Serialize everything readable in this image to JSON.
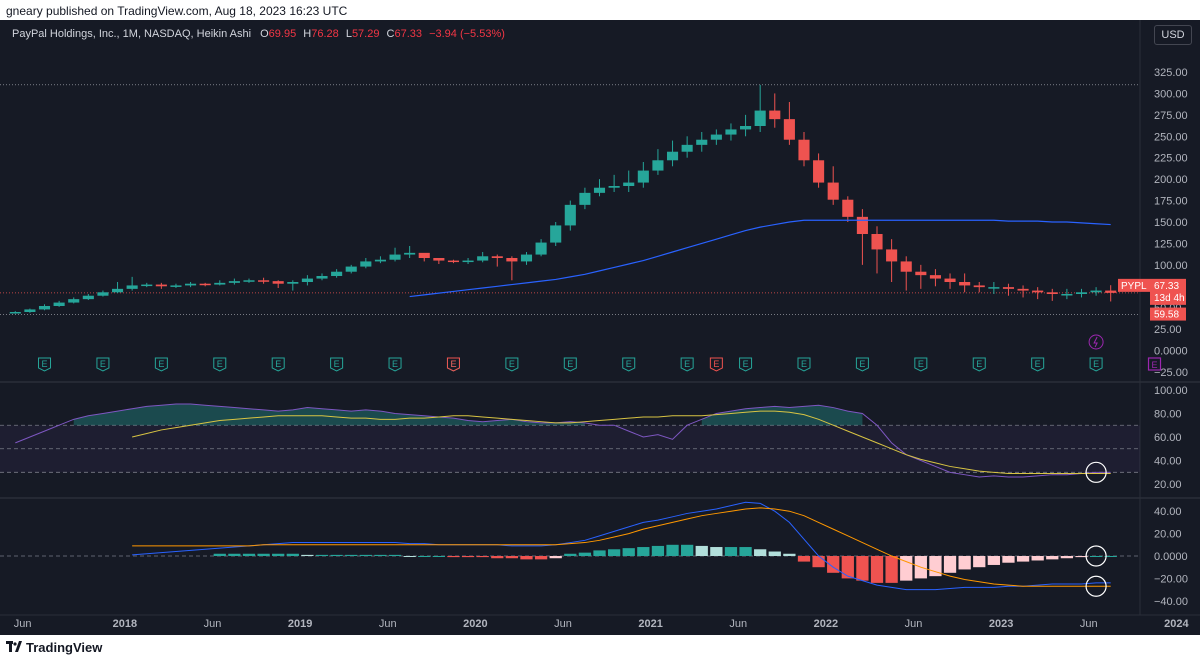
{
  "header": {
    "published_line": "gneary published on TradingView.com, Aug 18, 2023 16:23 UTC"
  },
  "legend": {
    "title": "PayPal Holdings, Inc., 1M, NASDAQ, Heikin Ashi",
    "open_label": "O",
    "open": "69.95",
    "high_label": "H",
    "high": "76.28",
    "low_label": "L",
    "low": "57.29",
    "close_label": "C",
    "close": "67.33",
    "change": "−3.94 (−5.53%)"
  },
  "currency_button": "USD",
  "price_axis": {
    "ticks": [
      "325.00",
      "300.00",
      "275.00",
      "250.00",
      "225.00",
      "200.00",
      "175.00",
      "150.00",
      "125.00",
      "100.00",
      "75.00",
      "50.00",
      "25.00",
      "0.0000",
      "−25.00"
    ]
  },
  "price_badges": {
    "symbol": "PYPL",
    "last": "67.33",
    "countdown": "13d 4h",
    "low_marker": "59.58"
  },
  "rsi_axis": {
    "ticks": [
      "100.00",
      "80.00",
      "60.00",
      "40.00",
      "20.00"
    ]
  },
  "macd_axis": {
    "ticks": [
      "40.00",
      "20.00",
      "0.0000",
      "−20.00",
      "−40.00"
    ]
  },
  "time_axis": {
    "labels": [
      "Jun",
      "2018",
      "Jun",
      "2019",
      "Jun",
      "2020",
      "Jun",
      "2021",
      "Jun",
      "2022",
      "Jun",
      "2023",
      "Jun",
      "2024",
      "Jun"
    ]
  },
  "events": {
    "earnings_letter": "E",
    "dividend_icon": "lightning-icon"
  },
  "footer": {
    "brand": "TradingView"
  },
  "colors": {
    "up": "#26a69a",
    "down": "#ef5350",
    "background": "#161a25",
    "ma_line": "#2962ff",
    "rsi_line": "#7e57c2",
    "rsi_ma": "#d8c443",
    "macd_signal": "#ff9800"
  },
  "chart_data": [
    {
      "type": "candlestick",
      "style": "Heikin Ashi",
      "timeframe": "1M",
      "x": [
        "2017-05",
        "2017-06",
        "2017-07",
        "2017-08",
        "2017-09",
        "2017-10",
        "2017-11",
        "2017-12",
        "2018-01",
        "2018-02",
        "2018-03",
        "2018-04",
        "2018-05",
        "2018-06",
        "2018-07",
        "2018-08",
        "2018-09",
        "2018-10",
        "2018-11",
        "2018-12",
        "2019-01",
        "2019-02",
        "2019-03",
        "2019-04",
        "2019-05",
        "2019-06",
        "2019-07",
        "2019-08",
        "2019-09",
        "2019-10",
        "2019-11",
        "2019-12",
        "2020-01",
        "2020-02",
        "2020-03",
        "2020-04",
        "2020-05",
        "2020-06",
        "2020-07",
        "2020-08",
        "2020-09",
        "2020-10",
        "2020-11",
        "2020-12",
        "2021-01",
        "2021-02",
        "2021-03",
        "2021-04",
        "2021-05",
        "2021-06",
        "2021-07",
        "2021-08",
        "2021-09",
        "2021-10",
        "2021-11",
        "2021-12",
        "2022-01",
        "2022-02",
        "2022-03",
        "2022-04",
        "2022-05",
        "2022-06",
        "2022-07",
        "2022-08",
        "2022-09",
        "2022-10",
        "2022-11",
        "2022-12",
        "2023-01",
        "2023-02",
        "2023-03",
        "2023-04",
        "2023-05",
        "2023-06",
        "2023-07",
        "2023-08"
      ],
      "open": [
        44,
        45,
        48,
        52,
        56,
        60,
        64,
        68,
        72,
        76,
        77,
        75,
        76,
        78,
        77,
        79,
        81,
        82,
        81,
        78,
        80,
        84,
        87,
        92,
        98,
        104,
        106,
        112,
        114,
        108,
        105,
        104,
        105,
        110,
        108,
        104,
        112,
        126,
        146,
        170,
        184,
        190,
        192,
        196,
        210,
        222,
        232,
        240,
        246,
        252,
        258,
        262,
        280,
        270,
        246,
        222,
        196,
        176,
        156,
        136,
        118,
        104,
        92,
        88,
        84,
        80,
        76,
        74,
        74,
        72,
        70,
        68,
        66,
        66,
        68,
        70
      ],
      "close": [
        45,
        48,
        52,
        56,
        60,
        64,
        68,
        72,
        76,
        77,
        75,
        76,
        78,
        77,
        79,
        81,
        82,
        81,
        78,
        80,
        84,
        87,
        92,
        98,
        104,
        106,
        112,
        114,
        108,
        105,
        104,
        105,
        110,
        108,
        104,
        112,
        126,
        146,
        170,
        184,
        190,
        192,
        196,
        210,
        222,
        232,
        240,
        246,
        252,
        258,
        262,
        280,
        270,
        246,
        222,
        196,
        176,
        156,
        136,
        118,
        104,
        92,
        88,
        84,
        80,
        76,
        74,
        74,
        72,
        70,
        68,
        66,
        66,
        68,
        70,
        67.33
      ],
      "high": [
        46,
        49,
        54,
        58,
        62,
        66,
        70,
        80,
        86,
        79,
        79,
        78,
        80,
        79,
        82,
        84,
        84,
        85,
        82,
        82,
        88,
        90,
        95,
        100,
        108,
        110,
        120,
        122,
        112,
        108,
        106,
        108,
        115,
        112,
        110,
        115,
        130,
        150,
        175,
        190,
        200,
        205,
        210,
        220,
        235,
        245,
        250,
        255,
        258,
        265,
        275,
        310,
        300,
        290,
        255,
        230,
        215,
        180,
        165,
        145,
        130,
        110,
        100,
        95,
        90,
        90,
        80,
        80,
        78,
        76,
        74,
        72,
        72,
        72,
        74,
        76.28
      ],
      "low": [
        43,
        44,
        47,
        51,
        55,
        59,
        63,
        67,
        70,
        74,
        72,
        73,
        74,
        75,
        76,
        77,
        79,
        78,
        73,
        70,
        76,
        82,
        85,
        90,
        96,
        102,
        104,
        108,
        104,
        101,
        102,
        101,
        103,
        98,
        82,
        100,
        110,
        122,
        140,
        165,
        180,
        185,
        185,
        190,
        205,
        215,
        225,
        232,
        240,
        245,
        250,
        255,
        260,
        240,
        215,
        190,
        170,
        150,
        100,
        90,
        80,
        70,
        72,
        75,
        72,
        68,
        68,
        66,
        64,
        62,
        60,
        58,
        60,
        62,
        64,
        57.29
      ],
      "sma": [
        null,
        null,
        null,
        null,
        null,
        null,
        null,
        null,
        null,
        null,
        null,
        null,
        null,
        null,
        null,
        null,
        null,
        null,
        null,
        null,
        null,
        null,
        null,
        null,
        null,
        null,
        null,
        null,
        null,
        null,
        null,
        null,
        null,
        null,
        null,
        null,
        null,
        null,
        null,
        null,
        null,
        null,
        null,
        null,
        null,
        null,
        null,
        null,
        null,
        null,
        null,
        null,
        null,
        null,
        null,
        null,
        null,
        null,
        null,
        null,
        null,
        null,
        null,
        null,
        null,
        null,
        null,
        null,
        null,
        null,
        null,
        null,
        null,
        null,
        null,
        null
      ],
      "sma_line": {
        "x_start": "2019-08",
        "x_end": "2023-08",
        "values": [
          63,
          65,
          67,
          69,
          71,
          73,
          75,
          77,
          79,
          81,
          83,
          86,
          89,
          93,
          97,
          101,
          105,
          110,
          115,
          120,
          125,
          130,
          135,
          140,
          144,
          147,
          150,
          152,
          152,
          152,
          152,
          152,
          152,
          152,
          152,
          152,
          152,
          152,
          152,
          152,
          152,
          151,
          151,
          151,
          150,
          150,
          149,
          148,
          147
        ]
      },
      "ylim": [
        -25,
        325
      ],
      "axis_format": "price"
    },
    {
      "type": "line",
      "title": "",
      "series": [
        {
          "values": [
            55,
            60,
            65,
            70,
            75,
            78,
            80,
            82,
            84,
            86,
            87,
            88,
            88,
            87,
            86,
            85,
            84,
            83,
            82,
            83,
            85,
            84,
            83,
            82,
            83,
            82,
            80,
            79,
            78,
            77,
            76,
            74,
            73,
            74,
            75,
            73,
            72,
            72,
            73,
            72,
            70,
            70,
            65,
            60,
            62,
            58,
            70,
            75,
            80,
            82,
            84,
            85,
            86,
            85,
            86,
            87,
            85,
            82,
            80,
            70,
            55,
            45,
            40,
            35,
            30,
            28,
            26,
            27,
            26,
            26,
            27,
            28,
            28,
            29,
            30,
            30
          ]
        },
        {
          "values": [
            null,
            null,
            null,
            null,
            null,
            null,
            null,
            null,
            60,
            63,
            66,
            68,
            70,
            72,
            74,
            75,
            76,
            77,
            78,
            78,
            78,
            78,
            77,
            76,
            76,
            75,
            75,
            76,
            76,
            77,
            78,
            78,
            77,
            76,
            75,
            74,
            73,
            72,
            72,
            73,
            74,
            75,
            76,
            77,
            77,
            78,
            78,
            78,
            79,
            80,
            81,
            82,
            82,
            81,
            79,
            75,
            70,
            65,
            60,
            55,
            50,
            45,
            41,
            38,
            35,
            33,
            31,
            30,
            29,
            29,
            29,
            29,
            29,
            29,
            29,
            29
          ]
        }
      ],
      "ylim": [
        15,
        105
      ],
      "bands": [
        30,
        50,
        70
      ]
    },
    {
      "type": "line",
      "title": "",
      "series": [
        {
          "values": [
            null,
            null,
            null,
            null,
            null,
            null,
            null,
            null,
            1,
            2,
            3,
            4,
            5,
            6,
            7,
            8,
            9,
            10,
            11,
            12,
            12,
            12,
            12,
            12,
            12,
            12,
            12,
            11,
            11,
            10,
            10,
            10,
            10,
            10,
            9,
            9,
            9,
            10,
            12,
            14,
            18,
            22,
            26,
            30,
            32,
            35,
            38,
            40,
            42,
            45,
            48,
            47,
            40,
            30,
            15,
            0,
            -10,
            -18,
            -22,
            -26,
            -28,
            -30,
            -30,
            -30,
            -29,
            -28,
            -28,
            -28,
            -27,
            -27,
            -26,
            -25,
            -25,
            -25,
            -24,
            -24
          ]
        },
        {
          "values": [
            null,
            null,
            null,
            null,
            null,
            null,
            null,
            null,
            9,
            9,
            9,
            9,
            9,
            9,
            9,
            9,
            9,
            10,
            10,
            10,
            10,
            10,
            10,
            10,
            10,
            10,
            10,
            10,
            10,
            10,
            10,
            10,
            10,
            10,
            10,
            10,
            10,
            10,
            11,
            12,
            14,
            17,
            20,
            24,
            27,
            30,
            33,
            36,
            38,
            40,
            42,
            43,
            42,
            40,
            36,
            30,
            24,
            18,
            12,
            6,
            0,
            -5,
            -10,
            -14,
            -18,
            -21,
            -23,
            -25,
            -26,
            -27,
            -27,
            -27,
            -27,
            -27,
            -27,
            -27
          ]
        },
        {
          "values": [
            null,
            null,
            null,
            null,
            null,
            null,
            null,
            null,
            null,
            null,
            null,
            null,
            null,
            null,
            2,
            2,
            2,
            2,
            2,
            2,
            1,
            1,
            1,
            1,
            1,
            1,
            1,
            0,
            0,
            0,
            -1,
            -1,
            -1,
            -2,
            -2,
            -3,
            -3,
            -2,
            2,
            3,
            5,
            6,
            7,
            8,
            9,
            10,
            10,
            9,
            8,
            8,
            8,
            6,
            4,
            2,
            -5,
            -10,
            -15,
            -20,
            -22,
            -24,
            -24,
            -22,
            -20,
            -18,
            -15,
            -12,
            -10,
            -8,
            -6,
            -5,
            -4,
            -3,
            -2,
            -1,
            0,
            0
          ]
        }
      ],
      "ylim": [
        -50,
        50
      ]
    }
  ]
}
